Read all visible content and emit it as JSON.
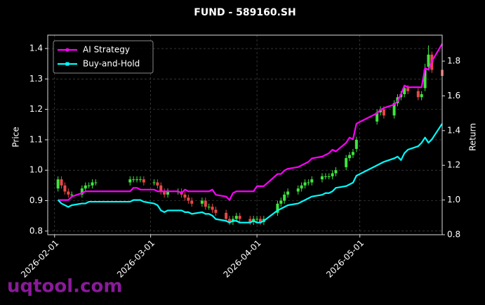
{
  "chart_data": {
    "type": "candlestick",
    "title": "FUND - 589160.SH",
    "x": [
      "2026-02-02",
      "2026-02-03",
      "2026-02-04",
      "2026-02-05",
      "2026-02-06",
      "2026-02-09",
      "2026-02-10",
      "2026-02-11",
      "2026-02-12",
      "2026-02-13",
      "2026-02-23",
      "2026-02-24",
      "2026-02-25",
      "2026-02-26",
      "2026-02-27",
      "2026-03-02",
      "2026-03-03",
      "2026-03-04",
      "2026-03-05",
      "2026-03-06",
      "2026-03-09",
      "2026-03-10",
      "2026-03-11",
      "2026-03-12",
      "2026-03-13",
      "2026-03-16",
      "2026-03-17",
      "2026-03-18",
      "2026-03-19",
      "2026-03-20",
      "2026-03-23",
      "2026-03-24",
      "2026-03-25",
      "2026-03-26",
      "2026-03-27",
      "2026-03-30",
      "2026-03-31",
      "2026-04-01",
      "2026-04-02",
      "2026-04-03",
      "2026-04-07",
      "2026-04-08",
      "2026-04-09",
      "2026-04-10",
      "2026-04-13",
      "2026-04-14",
      "2026-04-15",
      "2026-04-16",
      "2026-04-17",
      "2026-04-20",
      "2026-04-21",
      "2026-04-22",
      "2026-04-23",
      "2026-04-24",
      "2026-04-27",
      "2026-04-28",
      "2026-04-29",
      "2026-04-30",
      "2026-05-06",
      "2026-05-07",
      "2026-05-08",
      "2026-05-11",
      "2026-05-12",
      "2026-05-13",
      "2026-05-14",
      "2026-05-15",
      "2026-05-18",
      "2026-05-19",
      "2026-05-20",
      "2026-05-21",
      "2026-05-22",
      "2026-05-25"
    ],
    "xlim": [
      "2026-01-30",
      "2026-05-25"
    ],
    "xticks": [
      "2026-02-01",
      "2026-03-01",
      "2026-04-01",
      "2026-05-01"
    ],
    "ylabel": "Price",
    "ylim": [
      0.788,
      1.444
    ],
    "yticks": [
      0.8,
      0.9,
      {
        "value": 1,
        "label": "1.0"
      },
      1.1,
      1.2,
      1.3,
      1.4
    ],
    "y2label": "Return",
    "y2lim": [
      0.8,
      1.95
    ],
    "y2ticks": [
      0.8,
      {
        "value": 1,
        "label": "1.0"
      },
      1.2,
      1.4,
      1.6,
      1.8
    ],
    "ohlc": {
      "open": [
        0.94,
        0.97,
        0.95,
        0.93,
        0.92,
        0.92,
        0.94,
        0.95,
        0.95,
        0.96,
        0.96,
        0.97,
        0.97,
        0.97,
        0.97,
        0.96,
        0.96,
        0.95,
        0.93,
        0.92,
        0.93,
        0.93,
        0.92,
        0.91,
        0.9,
        0.89,
        0.9,
        0.88,
        0.88,
        0.87,
        0.86,
        0.84,
        0.83,
        0.84,
        0.85,
        0.84,
        0.83,
        0.84,
        0.84,
        0.83,
        0.86,
        0.89,
        0.9,
        0.92,
        0.93,
        0.94,
        0.95,
        0.96,
        0.96,
        0.97,
        0.98,
        0.98,
        0.98,
        0.99,
        1.01,
        1.04,
        1.05,
        1.07,
        1.16,
        1.19,
        1.2,
        1.18,
        1.22,
        1.24,
        1.25,
        1.27,
        1.26,
        1.24,
        1.27,
        1.34,
        1.38,
        1.33
      ],
      "high": [
        0.98,
        0.98,
        0.96,
        0.94,
        0.93,
        0.95,
        0.96,
        0.96,
        0.97,
        0.97,
        0.98,
        0.98,
        0.98,
        0.98,
        0.98,
        0.97,
        0.97,
        0.96,
        0.94,
        0.94,
        0.94,
        0.94,
        0.93,
        0.92,
        0.91,
        0.91,
        0.91,
        0.89,
        0.89,
        0.88,
        0.87,
        0.85,
        0.85,
        0.86,
        0.86,
        0.85,
        0.85,
        0.85,
        0.85,
        0.85,
        0.9,
        0.91,
        0.93,
        0.94,
        0.95,
        0.96,
        0.97,
        0.97,
        0.98,
        0.99,
        0.99,
        0.99,
        1.0,
        1.01,
        1.05,
        1.06,
        1.07,
        1.11,
        1.2,
        1.21,
        1.21,
        1.23,
        1.25,
        1.26,
        1.28,
        1.28,
        1.27,
        1.26,
        1.35,
        1.41,
        1.39,
        1.34
      ],
      "low": [
        0.93,
        0.94,
        0.92,
        0.91,
        0.91,
        0.91,
        0.93,
        0.94,
        0.94,
        0.95,
        0.95,
        0.96,
        0.96,
        0.96,
        0.95,
        0.95,
        0.94,
        0.92,
        0.91,
        0.91,
        0.92,
        0.91,
        0.9,
        0.89,
        0.88,
        0.88,
        0.87,
        0.87,
        0.86,
        0.85,
        0.83,
        0.82,
        0.82,
        0.83,
        0.83,
        0.82,
        0.82,
        0.83,
        0.82,
        0.82,
        0.85,
        0.88,
        0.89,
        0.91,
        0.92,
        0.93,
        0.94,
        0.95,
        0.95,
        0.96,
        0.97,
        0.97,
        0.97,
        0.98,
        1.0,
        1.03,
        1.04,
        1.06,
        1.15,
        1.18,
        1.17,
        1.17,
        1.21,
        1.23,
        1.24,
        1.25,
        1.23,
        1.23,
        1.26,
        1.33,
        1.32,
        1.3
      ],
      "close": [
        0.97,
        0.95,
        0.93,
        0.92,
        0.92,
        0.94,
        0.95,
        0.95,
        0.96,
        0.96,
        0.97,
        0.97,
        0.97,
        0.97,
        0.96,
        0.96,
        0.95,
        0.93,
        0.92,
        0.93,
        0.93,
        0.92,
        0.91,
        0.9,
        0.89,
        0.9,
        0.88,
        0.88,
        0.87,
        0.86,
        0.84,
        0.83,
        0.84,
        0.85,
        0.84,
        0.83,
        0.84,
        0.84,
        0.83,
        0.84,
        0.89,
        0.9,
        0.92,
        0.93,
        0.94,
        0.95,
        0.96,
        0.96,
        0.97,
        0.98,
        0.98,
        0.98,
        0.99,
        1.0,
        1.04,
        1.05,
        1.06,
        1.1,
        1.19,
        1.2,
        1.18,
        1.22,
        1.24,
        1.25,
        1.27,
        1.26,
        1.24,
        1.25,
        1.33,
        1.38,
        1.33,
        1.31
      ],
      "up_color": "#3ee63e",
      "down_color": "#e84848"
    },
    "series": [
      {
        "name": "AI Strategy",
        "color": "#ff00ff",
        "axis": "y2",
        "values": [
          1.0,
          1.0,
          1.0,
          1.0,
          1.02,
          1.04,
          1.05,
          1.05,
          1.05,
          1.05,
          1.05,
          1.07,
          1.07,
          1.06,
          1.06,
          1.06,
          1.05,
          1.05,
          1.05,
          1.05,
          1.05,
          1.04,
          1.06,
          1.05,
          1.05,
          1.05,
          1.05,
          1.05,
          1.06,
          1.03,
          1.02,
          1.0,
          1.04,
          1.05,
          1.05,
          1.05,
          1.05,
          1.08,
          1.08,
          1.08,
          1.15,
          1.15,
          1.17,
          1.18,
          1.19,
          1.2,
          1.21,
          1.22,
          1.24,
          1.25,
          1.26,
          1.27,
          1.29,
          1.28,
          1.33,
          1.36,
          1.35,
          1.44,
          1.5,
          1.52,
          1.53,
          1.55,
          1.57,
          1.61,
          1.66,
          1.65,
          1.65,
          1.65,
          1.76,
          1.75,
          1.8,
          1.9
        ]
      },
      {
        "name": "Buy-and-Hold",
        "color": "#00ffff",
        "axis": "y2",
        "values": [
          1.0,
          0.98,
          0.97,
          0.96,
          0.97,
          0.98,
          0.98,
          0.99,
          0.99,
          0.99,
          0.99,
          1.0,
          1.0,
          1.0,
          0.99,
          0.98,
          0.97,
          0.94,
          0.93,
          0.94,
          0.94,
          0.94,
          0.93,
          0.93,
          0.92,
          0.93,
          0.92,
          0.92,
          0.91,
          0.89,
          0.88,
          0.87,
          0.88,
          0.88,
          0.87,
          0.87,
          0.88,
          0.87,
          0.87,
          0.88,
          0.94,
          0.95,
          0.96,
          0.97,
          0.98,
          0.99,
          1.0,
          1.01,
          1.02,
          1.03,
          1.04,
          1.04,
          1.05,
          1.07,
          1.08,
          1.09,
          1.1,
          1.14,
          1.2,
          1.21,
          1.22,
          1.24,
          1.25,
          1.23,
          1.27,
          1.29,
          1.31,
          1.33,
          1.36,
          1.33,
          1.35,
          1.44
        ]
      }
    ],
    "legend": "upper left",
    "grid": true
  },
  "watermark": "uqtool.com"
}
